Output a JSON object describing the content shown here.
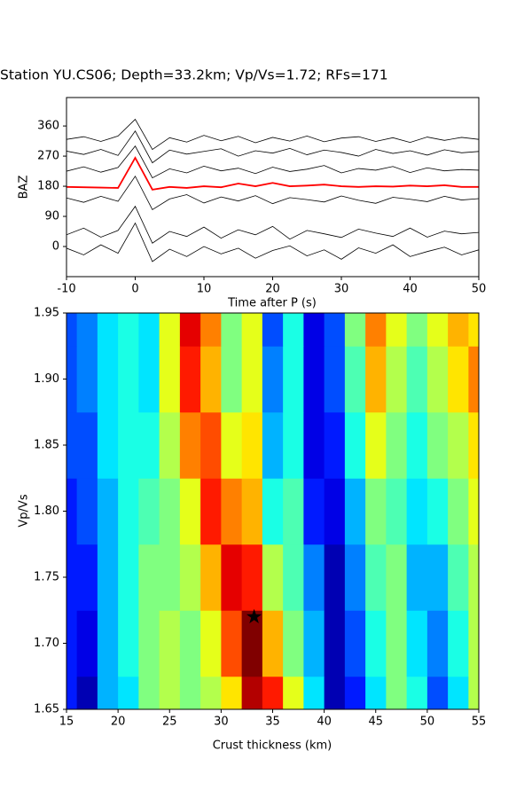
{
  "chart_data": [
    {
      "type": "line",
      "title": "Station YU.CS06; Depth=33.2km; Vp/Vs=1.72; RFs=171",
      "xlabel": "Time after P (s)",
      "ylabel": "BAZ",
      "xlim": [
        -10,
        50
      ],
      "xticks": [
        -10,
        0,
        10,
        20,
        30,
        40,
        50
      ],
      "ylim": [
        -90,
        445
      ],
      "yticks": [
        0,
        90,
        180,
        270,
        360
      ],
      "x": [
        -10,
        -7.5,
        -5,
        -2.5,
        0,
        2.5,
        5,
        7.5,
        10,
        12.5,
        15,
        17.5,
        20,
        22.5,
        25,
        27.5,
        30,
        32.5,
        35,
        37.5,
        40,
        42.5,
        45,
        47.5,
        50
      ],
      "series": [
        {
          "color": "#000000",
          "values": [
            320,
            328,
            314,
            330,
            380,
            290,
            325,
            312,
            332,
            316,
            329,
            310,
            326,
            315,
            330,
            313,
            324,
            328,
            314,
            325,
            311,
            327,
            317,
            326,
            320
          ]
        },
        {
          "color": "#000000",
          "values": [
            285,
            275,
            290,
            272,
            345,
            250,
            288,
            276,
            284,
            292,
            270,
            286,
            279,
            293,
            274,
            288,
            281,
            270,
            290,
            278,
            286,
            273,
            289,
            280,
            284
          ]
        },
        {
          "color": "#000000",
          "values": [
            225,
            238,
            222,
            236,
            300,
            205,
            232,
            220,
            240,
            226,
            234,
            218,
            237,
            224,
            231,
            242,
            220,
            233,
            228,
            239,
            221,
            235,
            226,
            230,
            228
          ]
        },
        {
          "color": "#000000",
          "values": [
            145,
            132,
            150,
            135,
            210,
            110,
            142,
            155,
            130,
            148,
            136,
            152,
            128,
            146,
            140,
            133,
            151,
            138,
            129,
            147,
            141,
            134,
            150,
            139,
            143
          ]
        },
        {
          "color": "#000000",
          "values": [
            35,
            55,
            28,
            48,
            120,
            10,
            45,
            30,
            58,
            25,
            50,
            35,
            60,
            22,
            48,
            38,
            27,
            52,
            40,
            30,
            55,
            28,
            46,
            38,
            42
          ]
        },
        {
          "color": "#000000",
          "values": [
            -5,
            -25,
            5,
            -20,
            70,
            -45,
            -8,
            -30,
            0,
            -22,
            -5,
            -35,
            -12,
            2,
            -28,
            -10,
            -38,
            -4,
            -20,
            5,
            -30,
            -15,
            -2,
            -25,
            -10
          ]
        },
        {
          "color": "#ff0000",
          "values": [
            178,
            177,
            176,
            175,
            265,
            170,
            178,
            175,
            180,
            177,
            188,
            180,
            190,
            180,
            182,
            185,
            180,
            178,
            180,
            179,
            182,
            180,
            183,
            178,
            178
          ]
        }
      ]
    },
    {
      "type": "heatmap",
      "xlabel": "Crust thickness (km)",
      "ylabel": "Vp/Vs",
      "xlim": [
        15,
        55
      ],
      "xticks": [
        15,
        20,
        25,
        30,
        35,
        40,
        45,
        50,
        55
      ],
      "ylim": [
        1.65,
        1.95
      ],
      "yticks": [
        1.65,
        {
          "value": 1.7,
          "label": "1.70"
        },
        1.75,
        {
          "value": 1.8,
          "label": "1.80"
        },
        1.85,
        {
          "value": 1.9,
          "label": "1.90"
        },
        1.95
      ],
      "colormap": "jet",
      "zlim": [
        0,
        1
      ],
      "x": [
        15,
        17,
        19,
        21,
        23,
        25,
        27,
        29,
        31,
        33,
        35,
        37,
        39,
        41,
        43,
        45,
        47,
        49,
        51,
        53,
        55
      ],
      "y": [
        1.65,
        1.7,
        1.75,
        1.8,
        1.85,
        1.9,
        1.95
      ],
      "z": [
        [
          0.15,
          0.05,
          0.3,
          0.35,
          0.5,
          0.55,
          0.5,
          0.55,
          0.65,
          0.95,
          0.85,
          0.6,
          0.35,
          0.05,
          0.15,
          0.35,
          0.5,
          0.4,
          0.2,
          0.35,
          0.55
        ],
        [
          0.15,
          0.1,
          0.3,
          0.4,
          0.5,
          0.55,
          0.5,
          0.6,
          0.8,
          1.0,
          0.7,
          0.5,
          0.3,
          0.05,
          0.2,
          0.4,
          0.5,
          0.35,
          0.25,
          0.4,
          0.55
        ],
        [
          0.15,
          0.15,
          0.3,
          0.4,
          0.5,
          0.5,
          0.55,
          0.7,
          0.9,
          0.85,
          0.55,
          0.45,
          0.25,
          0.05,
          0.25,
          0.45,
          0.5,
          0.3,
          0.3,
          0.45,
          0.55
        ],
        [
          0.15,
          0.2,
          0.3,
          0.4,
          0.45,
          0.5,
          0.6,
          0.85,
          0.75,
          0.7,
          0.4,
          0.45,
          0.15,
          0.1,
          0.3,
          0.5,
          0.45,
          0.35,
          0.4,
          0.5,
          0.6
        ],
        [
          0.2,
          0.2,
          0.35,
          0.4,
          0.4,
          0.55,
          0.75,
          0.8,
          0.6,
          0.65,
          0.3,
          0.4,
          0.1,
          0.15,
          0.4,
          0.6,
          0.5,
          0.4,
          0.5,
          0.55,
          0.65
        ],
        [
          0.2,
          0.25,
          0.35,
          0.4,
          0.35,
          0.6,
          0.85,
          0.7,
          0.5,
          0.6,
          0.25,
          0.4,
          0.1,
          0.2,
          0.45,
          0.7,
          0.55,
          0.45,
          0.55,
          0.65,
          0.75
        ],
        [
          0.2,
          0.25,
          0.35,
          0.4,
          0.35,
          0.6,
          0.9,
          0.75,
          0.5,
          0.6,
          0.2,
          0.4,
          0.1,
          0.2,
          0.5,
          0.75,
          0.6,
          0.5,
          0.6,
          0.7,
          0.65
        ]
      ],
      "marker": {
        "x": 33.2,
        "y": 1.72
      }
    }
  ]
}
